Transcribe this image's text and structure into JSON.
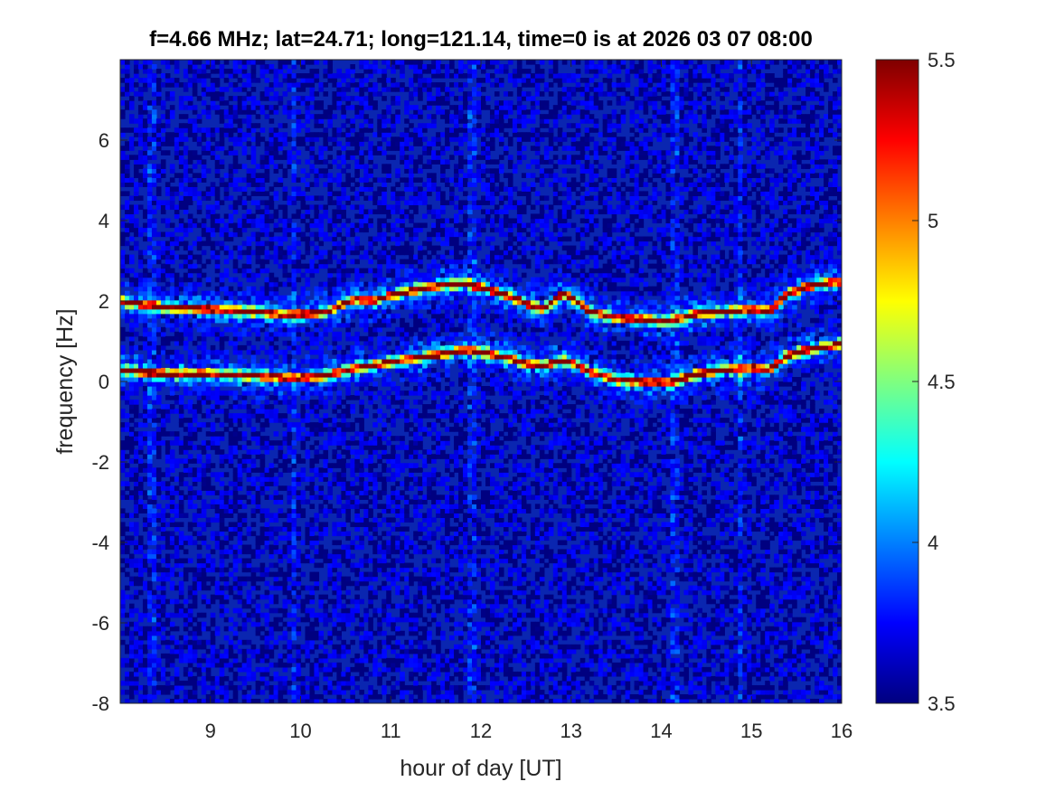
{
  "chart_data": {
    "type": "heatmap",
    "title": "f=4.66 MHz;  lat=24.71; long=121.14, time=0 is at 2026 03 07 08:00",
    "xlabel": "hour of day [UT]",
    "ylabel": "frequency [Hz]",
    "xlim": [
      8,
      16
    ],
    "ylim": [
      -8,
      8
    ],
    "x_ticks": [
      9,
      10,
      11,
      12,
      13,
      14,
      15,
      16
    ],
    "y_ticks": [
      -8,
      -6,
      -4,
      -2,
      0,
      2,
      4,
      6
    ],
    "colorbar": {
      "range": [
        3.5,
        5.5
      ],
      "ticks": [
        3.5,
        4,
        4.5,
        5,
        5.5
      ],
      "colormap": "jet"
    },
    "background_level": 3.6,
    "traces": [
      {
        "x": [
          8.0,
          8.5,
          9.0,
          9.5,
          9.9,
          10.3,
          10.6,
          10.8,
          11.0,
          11.3,
          11.6,
          11.8,
          12.0,
          12.3,
          12.5,
          12.7,
          12.9,
          13.0,
          13.2,
          13.5,
          13.8,
          14.1,
          14.4,
          14.7,
          15.0,
          15.2,
          15.4,
          15.6,
          15.8,
          16.0
        ],
        "y": [
          2.0,
          1.85,
          1.8,
          1.75,
          1.65,
          1.75,
          2.05,
          2.0,
          2.15,
          2.3,
          2.4,
          2.45,
          2.35,
          2.15,
          1.95,
          1.8,
          2.2,
          2.1,
          1.75,
          1.6,
          1.55,
          1.5,
          1.7,
          1.75,
          1.8,
          1.75,
          2.2,
          2.35,
          2.45,
          2.5
        ]
      },
      {
        "x": [
          8.0,
          8.5,
          9.0,
          9.5,
          9.9,
          10.3,
          10.6,
          10.8,
          11.0,
          11.3,
          11.6,
          11.8,
          12.0,
          12.3,
          12.5,
          12.7,
          12.9,
          13.0,
          13.2,
          13.5,
          13.8,
          14.1,
          14.4,
          14.7,
          15.0,
          15.2,
          15.4,
          15.6,
          15.8,
          16.0
        ],
        "y": [
          0.3,
          0.2,
          0.2,
          0.15,
          0.1,
          0.15,
          0.35,
          0.4,
          0.5,
          0.6,
          0.7,
          0.8,
          0.75,
          0.6,
          0.45,
          0.4,
          0.55,
          0.5,
          0.25,
          0.05,
          0.0,
          0.0,
          0.2,
          0.3,
          0.35,
          0.3,
          0.65,
          0.8,
          0.85,
          0.95
        ]
      }
    ],
    "vertical_interference_lines_hours": [
      8.35,
      9.93,
      11.9,
      14.15,
      14.88
    ]
  }
}
